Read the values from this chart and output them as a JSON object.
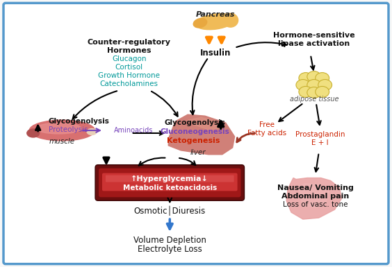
{
  "bg_color": "#f8f8f8",
  "border_color": "#5599cc",
  "text_elements": {
    "pancreas_label": "Pancreas",
    "insulin_label": "Insulin",
    "hormone_title": "Counter-regulatory\nHormones",
    "glucagon": "Glucagon",
    "cortisol": "Cortisol",
    "growth_hormone": "Growth Hormone",
    "catecholamines": "Catecholamines",
    "hormone_sensitive": "Hormone-sensitive\nlipase activation",
    "adipose_tissue": "adipose tissue",
    "glycogenolysis_muscle": "Glycogenolysis",
    "proteolysis": "Proteolysis",
    "aminoacids": "Aminoacids",
    "muscle": "muscle",
    "glycogenolysis_liver": "Glycogenolysis",
    "gluconeogenesis": "Gluconeogenesis",
    "ketogenesis": "Ketogenesis",
    "liver": "liver",
    "free_fatty_acids": "Free\nFatty acids",
    "prostaglandin": "Prostaglandin\nE + I",
    "hyperglycemia": "↑Hyperglycemia↓",
    "metabolic_ketoacidosis": "Metabolic ketoacidosis",
    "osmotic_diuresis": "Osmotic│Diuresis",
    "volume_depletion": "Volume Depletion",
    "electrolyte_loss": "Electrolyte Loss",
    "nausea": "Nausea/ Vomiting",
    "abdominal_pain": "Abdominal pain",
    "loss_vasc": "Loss of vasc. tone"
  },
  "colors": {
    "teal": "#009999",
    "red": "#cc2200",
    "purple": "#7744bb",
    "dark_red": "#993322",
    "blue_arrow": "#3377cc",
    "black": "#111111",
    "liver_color": "#d4807a",
    "muscle_pink": "#e08888",
    "muscle_dark": "#c05050",
    "muscle_tip": "#e8c8b0",
    "adipose_color": "#f0e080",
    "adipose_edge": "#c8b840",
    "blood_outer": "#7a1010",
    "blood_mid": "#aa2222",
    "blood_inner": "#cc4444",
    "blood_highlight": "#dd6666",
    "stomach_color": "#e8a0a0",
    "pancreas_color": "#f0b858"
  }
}
